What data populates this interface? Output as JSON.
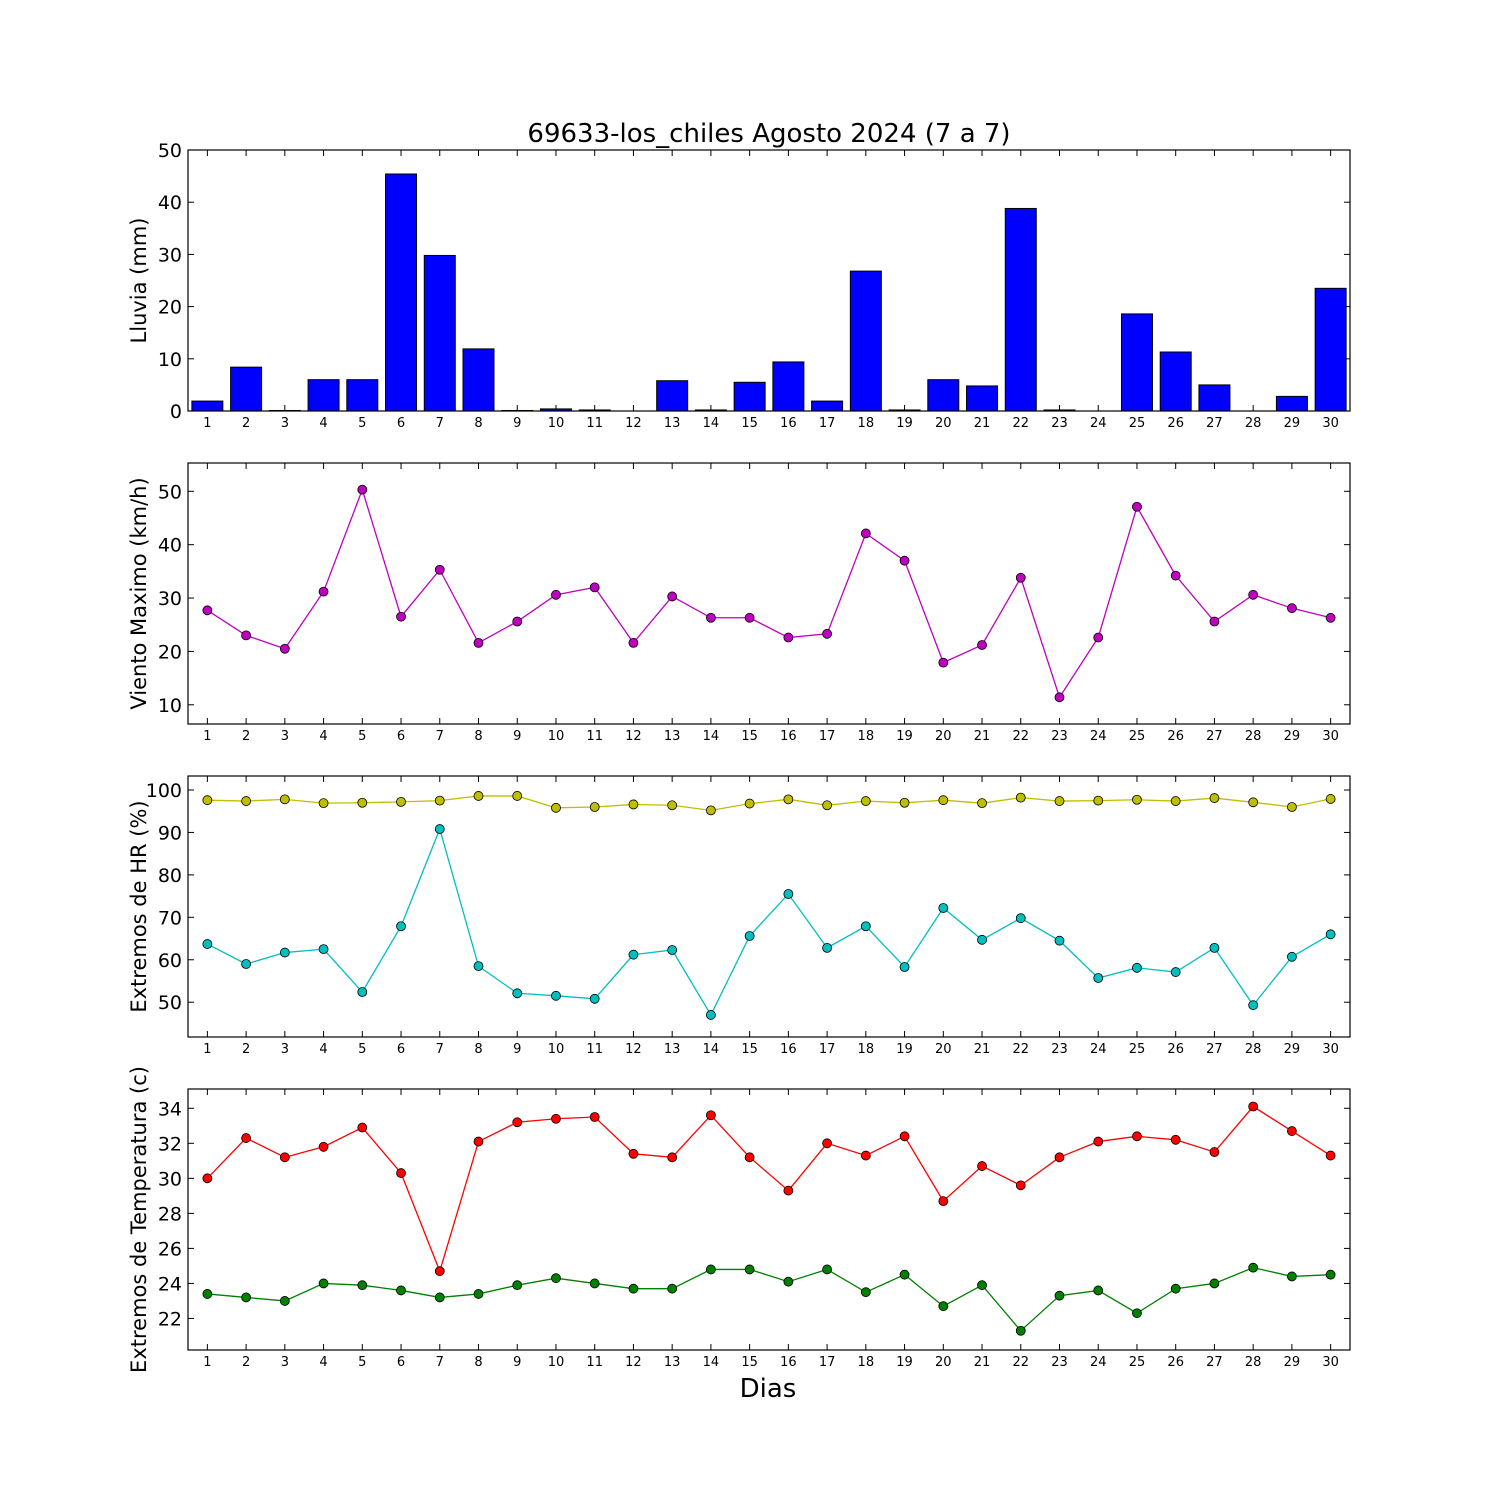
{
  "title": "69633-los_chiles Agosto 2024  (7 a 7)",
  "xlabel": "Dias",
  "colors": {
    "bars": "#0000ff",
    "wind": "#bf00bf",
    "hr_max": "#bfbf00",
    "hr_min": "#00bfbf",
    "t_max": "#ff0000",
    "t_min": "#008000"
  },
  "chart_data": [
    {
      "type": "bar",
      "ylabel": "Lluvia (mm)",
      "categories": [
        "1",
        "2",
        "3",
        "4",
        "5",
        "6",
        "7",
        "8",
        "9",
        "10",
        "11",
        "12",
        "13",
        "14",
        "15",
        "16",
        "17",
        "18",
        "19",
        "20",
        "21",
        "22",
        "23",
        "24",
        "25",
        "26",
        "27",
        "28",
        "29",
        "30"
      ],
      "ylim": [
        0,
        50
      ],
      "yticks": [
        0,
        10,
        20,
        30,
        40,
        50
      ],
      "series": [
        {
          "values": [
            1.9,
            8.4,
            0.1,
            6.0,
            6.0,
            45.4,
            29.8,
            11.9,
            0.1,
            0.4,
            0.2,
            0.0,
            5.8,
            0.2,
            5.5,
            9.4,
            1.9,
            26.8,
            0.2,
            6.0,
            4.8,
            38.8,
            0.2,
            0.0,
            18.6,
            11.3,
            5.0,
            0.0,
            2.8,
            23.5
          ]
        }
      ]
    },
    {
      "type": "line",
      "ylabel": "Viento Maximo (km/h)",
      "categories": [
        "1",
        "2",
        "3",
        "4",
        "5",
        "6",
        "7",
        "8",
        "9",
        "10",
        "11",
        "12",
        "13",
        "14",
        "15",
        "16",
        "17",
        "18",
        "19",
        "20",
        "21",
        "22",
        "23",
        "24",
        "25",
        "26",
        "27",
        "28",
        "29",
        "30"
      ],
      "ylim": [
        6.4,
        55.3
      ],
      "yticks": [
        10,
        20,
        30,
        40,
        50
      ],
      "series": [
        {
          "values": [
            27.7,
            23.0,
            20.5,
            31.2,
            50.3,
            26.5,
            35.3,
            21.6,
            25.6,
            30.6,
            32.0,
            21.6,
            30.3,
            26.3,
            26.3,
            22.6,
            23.3,
            42.1,
            37.0,
            17.9,
            21.2,
            33.8,
            11.4,
            22.6,
            47.1,
            34.2,
            25.6,
            30.6,
            28.1,
            26.3
          ]
        }
      ]
    },
    {
      "type": "line",
      "ylabel": "Extremos de HR (%)",
      "categories": [
        "1",
        "2",
        "3",
        "4",
        "5",
        "6",
        "7",
        "8",
        "9",
        "10",
        "11",
        "12",
        "13",
        "14",
        "15",
        "16",
        "17",
        "18",
        "19",
        "20",
        "21",
        "22",
        "23",
        "24",
        "25",
        "26",
        "27",
        "28",
        "29",
        "30"
      ],
      "ylim": [
        41.8,
        103.3
      ],
      "yticks": [
        50,
        60,
        70,
        80,
        90,
        100
      ],
      "series": [
        {
          "values": [
            97.6,
            97.4,
            97.8,
            96.9,
            97.0,
            97.2,
            97.5,
            98.6,
            98.6,
            95.8,
            96.0,
            96.6,
            96.4,
            95.2,
            96.8,
            97.8,
            96.4,
            97.4,
            97.0,
            97.6,
            96.9,
            98.2,
            97.4,
            97.5,
            97.7,
            97.4,
            98.1,
            97.1,
            96.0,
            97.9
          ]
        },
        {
          "values": [
            63.7,
            59.0,
            61.7,
            62.5,
            52.4,
            67.9,
            90.8,
            58.5,
            52.1,
            51.5,
            50.8,
            61.2,
            62.3,
            47.0,
            65.6,
            75.5,
            62.8,
            67.9,
            58.3,
            72.2,
            64.7,
            69.8,
            64.5,
            55.7,
            58.1,
            57.1,
            62.8,
            49.3,
            60.7,
            66.0
          ]
        }
      ]
    },
    {
      "type": "line",
      "ylabel": "Extremos de Temperatura (c)",
      "categories": [
        "1",
        "2",
        "3",
        "4",
        "5",
        "6",
        "7",
        "8",
        "9",
        "10",
        "11",
        "12",
        "13",
        "14",
        "15",
        "16",
        "17",
        "18",
        "19",
        "20",
        "21",
        "22",
        "23",
        "24",
        "25",
        "26",
        "27",
        "28",
        "29",
        "30"
      ],
      "ylim": [
        20.2,
        35.1
      ],
      "yticks": [
        22,
        24,
        26,
        28,
        30,
        32,
        34
      ],
      "series": [
        {
          "values": [
            30.0,
            32.3,
            31.2,
            31.8,
            32.9,
            30.3,
            24.7,
            32.1,
            33.2,
            33.4,
            33.5,
            31.4,
            31.2,
            33.6,
            31.2,
            29.3,
            32.0,
            31.3,
            32.4,
            28.7,
            30.7,
            29.6,
            31.2,
            32.1,
            32.4,
            32.2,
            31.5,
            34.1,
            32.7,
            31.3
          ]
        },
        {
          "values": [
            23.4,
            23.2,
            23.0,
            24.0,
            23.9,
            23.6,
            23.2,
            23.4,
            23.9,
            24.3,
            24.0,
            23.7,
            23.7,
            24.8,
            24.8,
            24.1,
            24.8,
            23.5,
            24.5,
            22.7,
            23.9,
            21.3,
            23.3,
            23.6,
            22.3,
            23.7,
            24.0,
            24.9,
            24.4,
            24.5
          ]
        }
      ]
    }
  ]
}
